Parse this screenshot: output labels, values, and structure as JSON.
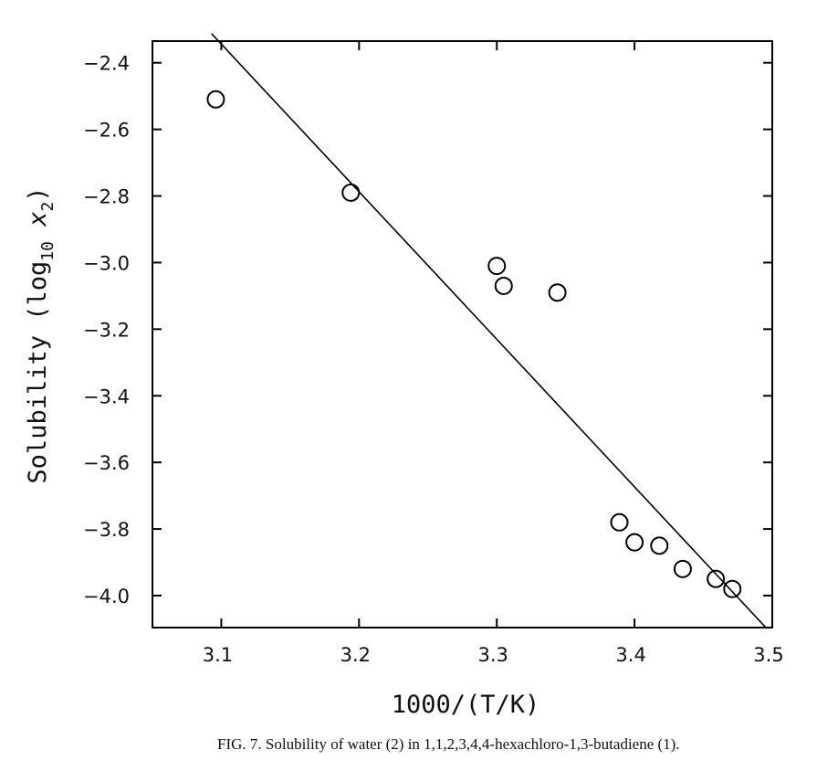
{
  "chart_data": {
    "type": "scatter",
    "title": "",
    "xlabel": "1000/(T/K)",
    "ylabel": "Solubility (log10 x2)",
    "ylabel_parts": [
      "Solubility (log",
      "10",
      " x",
      "2",
      ")"
    ],
    "xlim": [
      3.05,
      3.5
    ],
    "ylim": [
      -4.096,
      -2.335
    ],
    "xticks": [
      3.1,
      3.2,
      3.3,
      3.4,
      3.5
    ],
    "xtick_labels": [
      "3.1",
      "3.2",
      "3.3",
      "3.4",
      "3.5"
    ],
    "yticks": [
      -2.4,
      -2.6,
      -2.8,
      -3.0,
      -3.2,
      -3.4,
      -3.6,
      -3.8,
      -4.0
    ],
    "ytick_labels": [
      "-2.4",
      "-2.6",
      "-2.8",
      "-3.0",
      "-3.2",
      "-3.4",
      "-3.6",
      "-3.8",
      "-4.0"
    ],
    "grid": false,
    "series": [
      {
        "marker": "open-circle",
        "x": [
          3.096,
          3.194,
          3.3,
          3.305,
          3.344,
          3.389,
          3.4,
          3.418,
          3.435,
          3.459,
          3.471
        ],
        "y": [
          -2.51,
          -2.79,
          -3.01,
          -3.07,
          -3.09,
          -3.78,
          -3.84,
          -3.85,
          -3.92,
          -3.95,
          -3.98
        ]
      }
    ],
    "fit_line": {
      "x": [
        3.093,
        3.496
      ],
      "y": [
        -2.313,
        -4.099
      ]
    },
    "color": "#000000"
  },
  "caption": "FIG. 7.  Solubility of water (2) in 1,1,2,3,4,4-hexachloro-1,3-butadiene (1)."
}
